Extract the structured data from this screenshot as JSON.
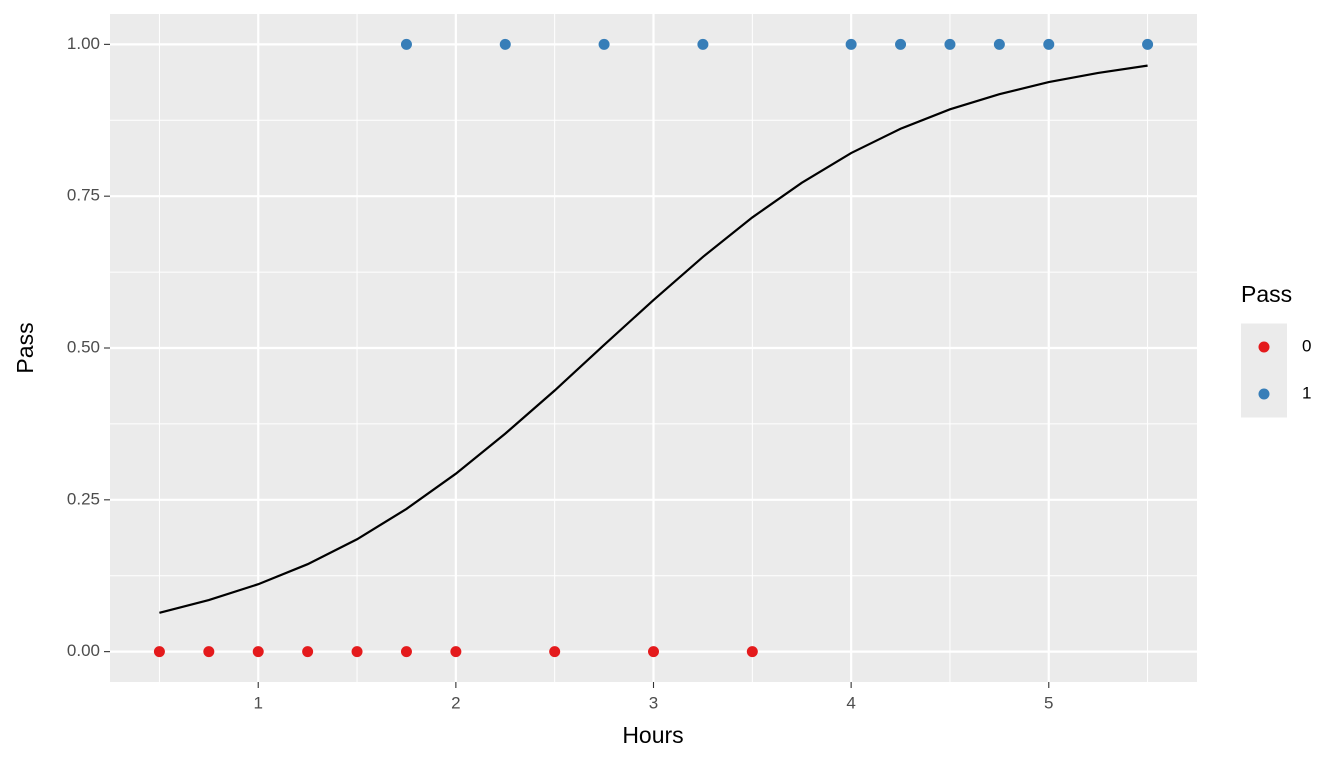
{
  "chart_data": {
    "type": "scatter",
    "x_label": "Hours",
    "y_label": "Pass",
    "legend_title": "Pass",
    "legend_position": "right",
    "xlim": [
      0.25,
      5.75
    ],
    "ylim": [
      -0.05,
      1.05
    ],
    "xticks": [
      1,
      2,
      3,
      4,
      5
    ],
    "yticks": [
      {
        "value": 0,
        "label": "0.00"
      },
      {
        "value": 0.25,
        "label": "0.25"
      },
      {
        "value": 0.5,
        "label": "0.50"
      },
      {
        "value": 0.75,
        "label": "0.75"
      },
      {
        "value": 1,
        "label": "1.00"
      }
    ],
    "minor_xticks": [
      0.5,
      1.5,
      2.5,
      3.5,
      4.5,
      5.5
    ],
    "minor_yticks": [
      0.125,
      0.375,
      0.625,
      0.875
    ],
    "grid": true,
    "series": [
      {
        "name": "0",
        "color": "#E41A1C",
        "x": [
          0.5,
          0.75,
          1,
          1.25,
          1.5,
          1.75,
          2,
          2.5,
          3,
          3.5
        ],
        "values": [
          0,
          0,
          0,
          0,
          0,
          0,
          0,
          0,
          0,
          0
        ]
      },
      {
        "name": "1",
        "color": "#377EB8",
        "x": [
          1.75,
          2.25,
          2.75,
          3.25,
          4,
          4.25,
          4.5,
          4.75,
          5,
          5.5
        ],
        "values": [
          1,
          1,
          1,
          1,
          1,
          1,
          1,
          1,
          1,
          1
        ]
      }
    ],
    "curve": {
      "color": "#000000",
      "x": [
        0.5,
        0.75,
        1,
        1.25,
        1.5,
        1.75,
        2,
        2.25,
        2.5,
        2.75,
        3,
        3.25,
        3.5,
        3.75,
        4,
        4.25,
        4.5,
        4.75,
        5,
        5.25,
        5.5
      ],
      "values": [
        0.064,
        0.085,
        0.111,
        0.144,
        0.185,
        0.235,
        0.293,
        0.359,
        0.43,
        0.505,
        0.579,
        0.65,
        0.715,
        0.772,
        0.821,
        0.861,
        0.893,
        0.918,
        0.938,
        0.953,
        0.965
      ]
    }
  }
}
